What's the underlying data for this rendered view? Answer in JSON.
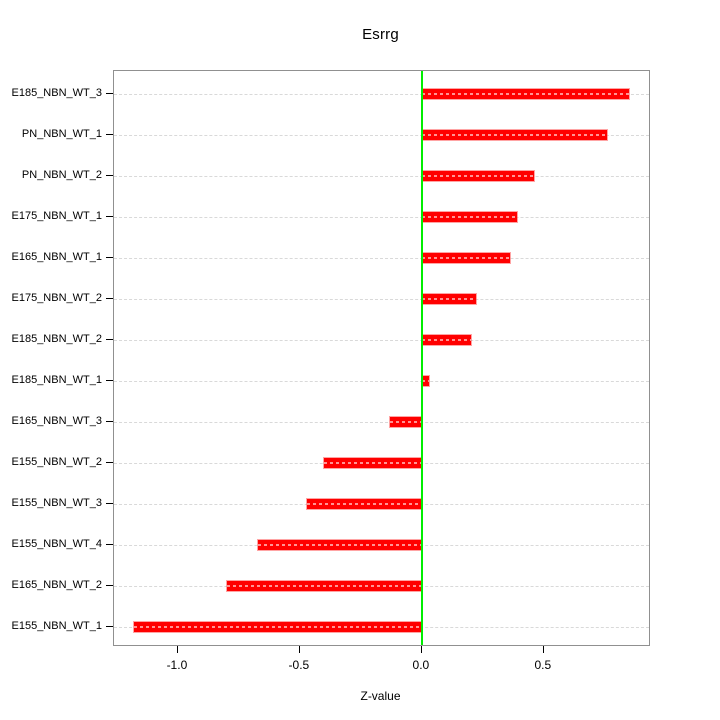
{
  "chart_data": {
    "type": "bar",
    "orientation": "horizontal",
    "title": "Esrrg",
    "xlabel": "Z-value",
    "categories": [
      "E185_NBN_WT_3",
      "PN_NBN_WT_1",
      "PN_NBN_WT_2",
      "E175_NBN_WT_1",
      "E165_NBN_WT_1",
      "E175_NBN_WT_2",
      "E185_NBN_WT_2",
      "E185_NBN_WT_1",
      "E165_NBN_WT_3",
      "E155_NBN_WT_2",
      "E155_NBN_WT_3",
      "E155_NBN_WT_4",
      "E165_NBN_WT_2",
      "E155_NBN_WT_1"
    ],
    "values": [
      0.85,
      0.76,
      0.46,
      0.39,
      0.36,
      0.22,
      0.2,
      0.03,
      -0.13,
      -0.4,
      -0.47,
      -0.67,
      -0.8,
      -1.18
    ],
    "xlim": [
      -1.262,
      0.931
    ],
    "x_tick_values": [
      -1.0,
      -0.5,
      0.0,
      0.5
    ],
    "x_tick_labels": [
      "-1.0",
      "-0.5",
      "0.0",
      "0.5"
    ],
    "zero_reference_line": 0,
    "grid": "dashed-horizontal-per-category",
    "legend": "none"
  },
  "colors": {
    "bar": "#ff0000",
    "bar_inner_dash": "rgba(255,255,255,0.58)",
    "zero_line": "#00ee00",
    "gridline": "#d9d9d9",
    "box_border": "#909090",
    "text": "#000000",
    "background": "#ffffff"
  }
}
